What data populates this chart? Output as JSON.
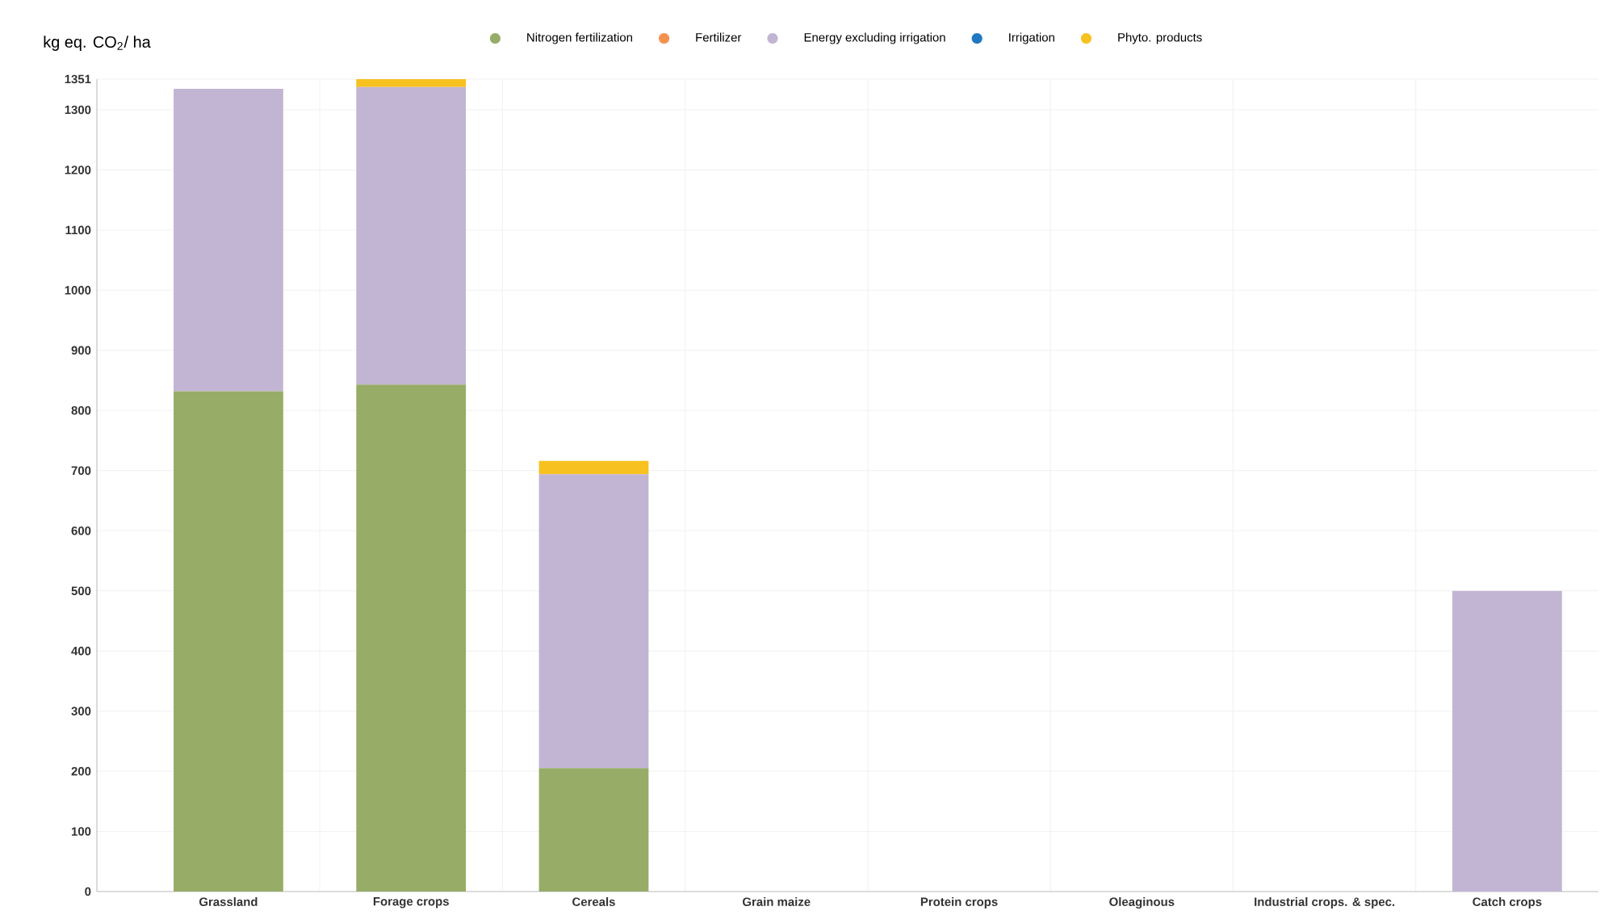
{
  "chart_data": {
    "type": "bar",
    "stacked": true,
    "ylabel": "kg eq. CO$_{2}$/ ha",
    "categories": [
      "Grassland",
      "Forage crops",
      "Cereals",
      "Grain maize",
      "Protein crops",
      "Oleaginous",
      "Industrial crops. & spec.",
      "Catch crops"
    ],
    "series": [
      {
        "name": "Nitrogen fertilization",
        "color": "#97ac67",
        "values": [
          832,
          843,
          205,
          0,
          0,
          0,
          0,
          0
        ]
      },
      {
        "name": "Fertilizer",
        "color": "#f5914f",
        "values": [
          0,
          0,
          0,
          0,
          0,
          0,
          0,
          0
        ]
      },
      {
        "name": "Energy excluding irrigation",
        "color": "#c2b5d3",
        "values": [
          503,
          495,
          489,
          0,
          0,
          0,
          0,
          500
        ]
      },
      {
        "name": "Irrigation",
        "color": "#1f78c1",
        "values": [
          0,
          0,
          0,
          0,
          0,
          0,
          0,
          0
        ]
      },
      {
        "name": "Phyto. products",
        "color": "#f7c11f",
        "values": [
          0,
          13,
          22,
          0,
          0,
          0,
          0,
          0
        ]
      }
    ],
    "ylim": [
      0,
      1351
    ],
    "yticks": [
      0,
      100,
      200,
      300,
      400,
      500,
      600,
      700,
      800,
      900,
      1000,
      1100,
      1200,
      1300,
      1351
    ],
    "grid": true,
    "legend": "top"
  }
}
